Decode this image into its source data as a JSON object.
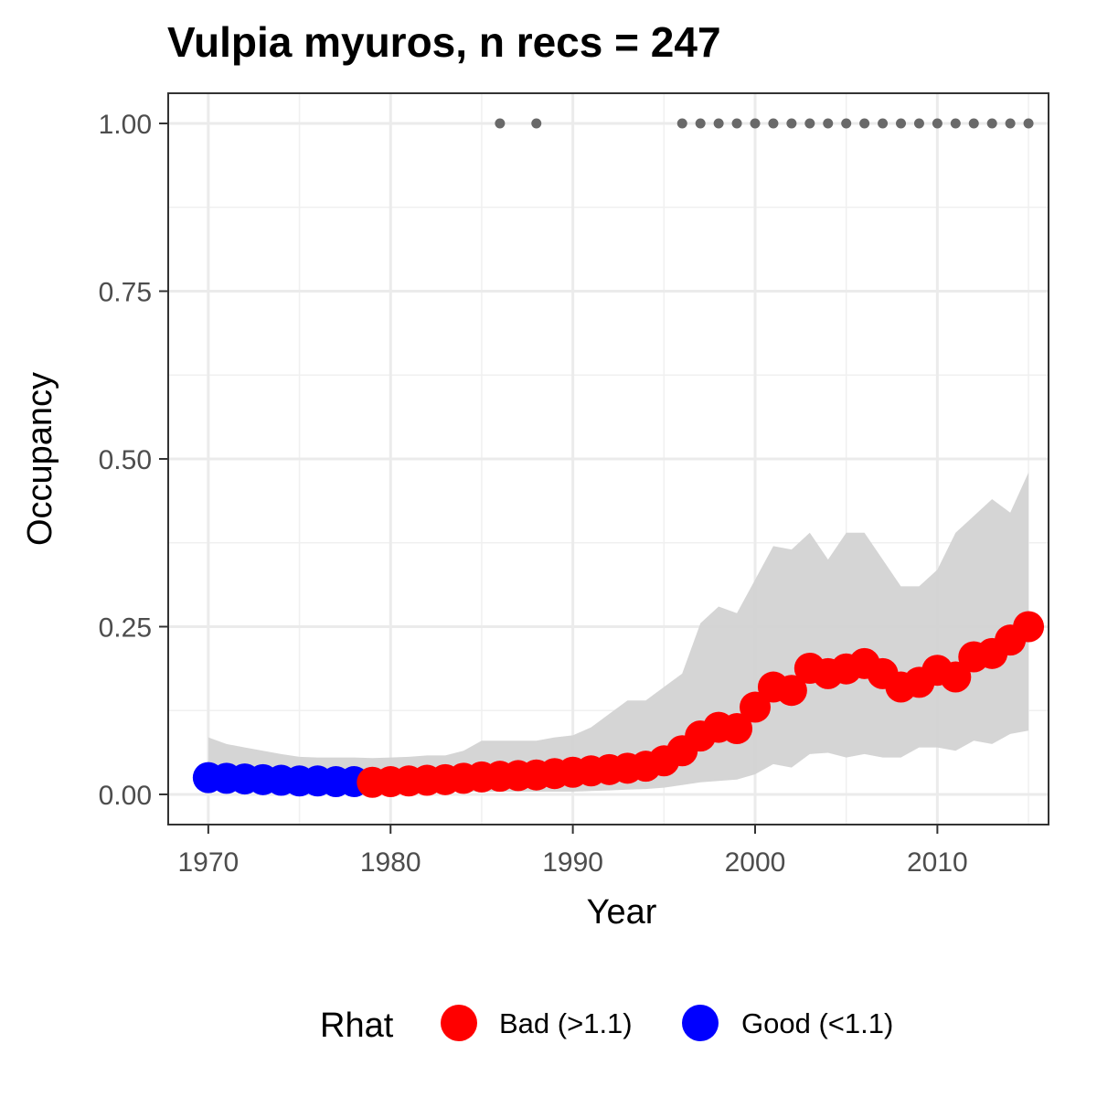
{
  "chart_data": {
    "type": "line",
    "title": "Vulpia myuros, n recs = 247",
    "xlabel": "Year",
    "ylabel": "Occupancy",
    "xlim": [
      1967.8,
      2016.1
    ],
    "ylim": [
      -0.045,
      1.045
    ],
    "x_ticks": [
      1970,
      1980,
      1990,
      2000,
      2010
    ],
    "x_tick_labels": [
      "1970",
      "1980",
      "1990",
      "2000",
      "2010"
    ],
    "y_ticks": [
      0,
      0.25,
      0.5,
      0.75,
      1
    ],
    "y_tick_labels": [
      "0.00",
      "0.25",
      "0.50",
      "0.75",
      "1.00"
    ],
    "grid": true,
    "legend_position": "bottom",
    "legend_title": "Rhat",
    "legend": [
      {
        "label": "Bad (>1.1)",
        "color": "#ff0000"
      },
      {
        "label": "Good (<1.1)",
        "color": "#0000ff"
      }
    ],
    "colors": {
      "bad": "#ff0000",
      "good": "#0000ff",
      "ribbon": "#d3d3d3",
      "records": "#696969"
    },
    "series": [
      {
        "x": [
          1970,
          1971,
          1972,
          1973,
          1974,
          1975,
          1976,
          1977,
          1978,
          1979,
          1980,
          1981,
          1982,
          1983,
          1984,
          1985,
          1986,
          1987,
          1988,
          1989,
          1990,
          1991,
          1992,
          1993,
          1994,
          1995,
          1996,
          1997,
          1998,
          1999,
          2000,
          2001,
          2002,
          2003,
          2004,
          2005,
          2006,
          2007,
          2008,
          2009,
          2010,
          2011,
          2012,
          2013,
          2014,
          2015
        ],
        "values": [
          0.025,
          0.024,
          0.023,
          0.022,
          0.021,
          0.02,
          0.02,
          0.019,
          0.019,
          0.018,
          0.019,
          0.02,
          0.021,
          0.022,
          0.024,
          0.026,
          0.027,
          0.028,
          0.029,
          0.031,
          0.033,
          0.035,
          0.037,
          0.039,
          0.042,
          0.05,
          0.065,
          0.087,
          0.1,
          0.098,
          0.13,
          0.16,
          0.155,
          0.188,
          0.18,
          0.187,
          0.195,
          0.18,
          0.16,
          0.167,
          0.185,
          0.175,
          0.205,
          0.21,
          0.23,
          0.25
        ],
        "lower": [
          0.01,
          0.009,
          0.008,
          0.007,
          0.006,
          0.005,
          0.005,
          0.004,
          0.004,
          0.004,
          0.004,
          0.004,
          0.004,
          0.004,
          0.004,
          0.004,
          0.004,
          0.004,
          0.004,
          0.004,
          0.004,
          0.005,
          0.006,
          0.007,
          0.008,
          0.01,
          0.014,
          0.018,
          0.02,
          0.022,
          0.03,
          0.045,
          0.04,
          0.06,
          0.062,
          0.055,
          0.06,
          0.055,
          0.055,
          0.07,
          0.07,
          0.065,
          0.08,
          0.075,
          0.09,
          0.095
        ],
        "upper": [
          0.085,
          0.075,
          0.07,
          0.065,
          0.06,
          0.056,
          0.055,
          0.055,
          0.055,
          0.054,
          0.055,
          0.056,
          0.058,
          0.058,
          0.065,
          0.08,
          0.08,
          0.08,
          0.08,
          0.085,
          0.088,
          0.1,
          0.12,
          0.14,
          0.14,
          0.16,
          0.18,
          0.255,
          0.28,
          0.27,
          0.32,
          0.37,
          0.365,
          0.39,
          0.35,
          0.39,
          0.39,
          0.35,
          0.31,
          0.31,
          0.335,
          0.39,
          0.415,
          0.44,
          0.42,
          0.48
        ],
        "rhat": [
          "good",
          "good",
          "good",
          "good",
          "good",
          "good",
          "good",
          "good",
          "good",
          "bad",
          "bad",
          "bad",
          "bad",
          "bad",
          "bad",
          "bad",
          "bad",
          "bad",
          "bad",
          "bad",
          "bad",
          "bad",
          "bad",
          "bad",
          "bad",
          "bad",
          "bad",
          "bad",
          "bad",
          "bad",
          "bad",
          "bad",
          "bad",
          "bad",
          "bad",
          "bad",
          "bad",
          "bad",
          "bad",
          "bad",
          "bad",
          "bad",
          "bad",
          "bad",
          "bad",
          "bad"
        ]
      }
    ],
    "record_years": [
      1986,
      1988,
      1996,
      1997,
      1998,
      1999,
      2000,
      2001,
      2002,
      2003,
      2004,
      2005,
      2006,
      2007,
      2008,
      2009,
      2010,
      2011,
      2012,
      2013,
      2014,
      2015
    ],
    "record_value": 1.0
  }
}
